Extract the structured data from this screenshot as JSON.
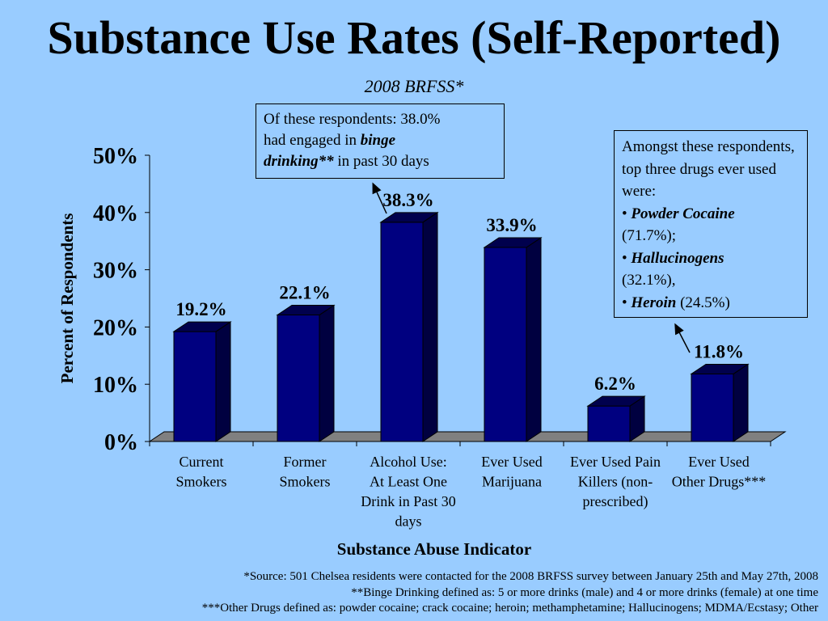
{
  "header": {
    "title": "Substance Use Rates (Self-Reported)",
    "subtitle": "2008 BRFSS*"
  },
  "callouts": {
    "binge": {
      "line1": "Of these respondents:  38.0%",
      "line2_prefix": "had engaged in ",
      "line2_emphasis": "binge",
      "line3_emphasis": "drinking**",
      "line3_suffix": " in past 30 days"
    },
    "drugs": {
      "intro": "Amongst these respondents, top three drugs ever used were:",
      "items": [
        {
          "bullet": "•",
          "name": "Powder Cocaine",
          "value": "(71.7%);"
        },
        {
          "bullet": "•",
          "name": "Hallucinogens",
          "value": "(32.1%),"
        },
        {
          "bullet": "•",
          "name": "Heroin",
          "value": "(24.5%)"
        }
      ]
    }
  },
  "chart_data": {
    "type": "bar",
    "title": "",
    "xlabel": "Substance Abuse Indicator",
    "ylabel": "Percent of Respondents",
    "ylim": [
      0,
      50
    ],
    "yticks": [
      "0%",
      "10%",
      "20%",
      "30%",
      "40%",
      "50%"
    ],
    "yticks_values": [
      0,
      10,
      20,
      30,
      40,
      50
    ],
    "categories": [
      "Current Smokers",
      "Former Smokers",
      "Alcohol Use: At Least One Drink in Past 30 days",
      "Ever Used Marijuana",
      "Ever Used Pain Killers (non-prescribed)",
      "Ever Used Other Drugs***"
    ],
    "category_lines": [
      [
        "Current",
        "Smokers"
      ],
      [
        "Former",
        "Smokers"
      ],
      [
        "Alcohol Use:",
        "At Least One",
        "Drink in Past 30",
        "days"
      ],
      [
        "Ever Used",
        "Marijuana"
      ],
      [
        "Ever Used Pain",
        "Killers (non-",
        "prescribed)"
      ],
      [
        "Ever Used",
        "Other Drugs***"
      ]
    ],
    "values": [
      19.2,
      22.1,
      38.3,
      33.9,
      6.2,
      11.8
    ],
    "value_labels": [
      "19.2%",
      "22.1%",
      "38.3%",
      "33.9%",
      "6.2%",
      "11.8%"
    ],
    "bar_color": "#000080",
    "grid": false,
    "legend": "none"
  },
  "footnotes": [
    "*Source: 501 Chelsea residents were contacted for the 2008 BRFSS survey between January 25th and May 27th, 2008",
    "**Binge Drinking defined as:  5 or more drinks (male) and 4 or more drinks (female) at one time",
    "***Other Drugs defined as:  powder cocaine; crack cocaine; heroin; methamphetamine; Hallucinogens; MDMA/Ecstasy; Other"
  ]
}
